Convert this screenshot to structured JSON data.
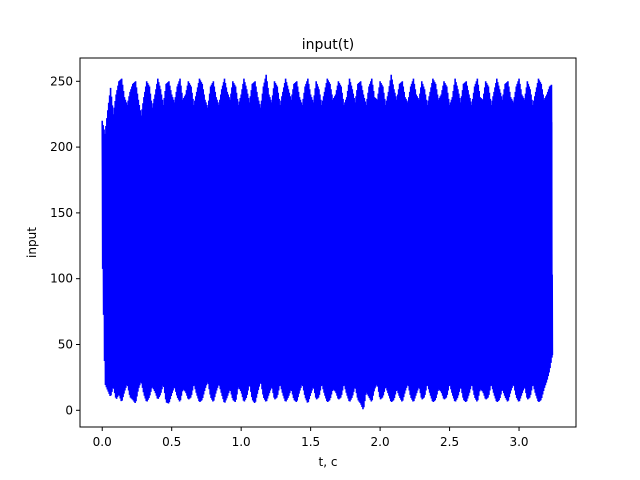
{
  "chart_data": {
    "type": "line",
    "title": "input(t)",
    "xlabel": "t, c",
    "ylabel": "input",
    "xlim": [
      -0.16,
      3.41
    ],
    "ylim": [
      -12.7,
      267.7
    ],
    "xticks": [
      0.0,
      0.5,
      1.0,
      1.5,
      2.0,
      2.5,
      3.0
    ],
    "xtick_labels": [
      "0.0",
      "0.5",
      "1.0",
      "1.5",
      "2.0",
      "2.5",
      "3.0"
    ],
    "yticks": [
      0,
      50,
      100,
      150,
      200,
      250
    ],
    "ytick_labels": [
      "0",
      "50",
      "100",
      "150",
      "200",
      "250"
    ],
    "grid": false,
    "legend": "none",
    "series": [
      {
        "color": "#0000ff",
        "x": [
          0.0,
          0.02,
          0.04,
          0.06,
          0.08,
          0.1,
          0.12,
          0.14,
          0.16,
          0.18,
          0.2,
          0.22,
          0.24,
          0.26,
          0.28,
          0.3,
          0.32,
          0.34,
          0.36,
          0.38,
          0.4,
          0.42,
          0.44,
          0.46,
          0.48,
          0.5,
          0.52,
          0.54,
          0.56,
          0.58,
          0.6,
          0.62,
          0.64,
          0.66,
          0.68,
          0.7,
          0.72,
          0.74,
          0.76,
          0.78,
          0.8,
          0.82,
          0.84,
          0.86,
          0.88,
          0.9,
          0.92,
          0.94,
          0.96,
          0.98,
          1.0,
          1.02,
          1.04,
          1.06,
          1.08,
          1.1,
          1.12,
          1.14,
          1.16,
          1.18,
          1.2,
          1.22,
          1.24,
          1.26,
          1.28,
          1.3,
          1.32,
          1.34,
          1.36,
          1.38,
          1.4,
          1.42,
          1.44,
          1.46,
          1.48,
          1.5,
          1.52,
          1.54,
          1.56,
          1.58,
          1.6,
          1.62,
          1.64,
          1.66,
          1.68,
          1.7,
          1.72,
          1.74,
          1.76,
          1.78,
          1.8,
          1.82,
          1.84,
          1.86,
          1.88,
          1.9,
          1.92,
          1.94,
          1.96,
          1.98,
          2.0,
          2.02,
          2.04,
          2.06,
          2.08,
          2.1,
          2.12,
          2.14,
          2.16,
          2.18,
          2.2,
          2.22,
          2.24,
          2.26,
          2.28,
          2.3,
          2.32,
          2.34,
          2.36,
          2.38,
          2.4,
          2.42,
          2.44,
          2.46,
          2.48,
          2.5,
          2.52,
          2.54,
          2.56,
          2.58,
          2.6,
          2.62,
          2.64,
          2.66,
          2.68,
          2.7,
          2.72,
          2.74,
          2.76,
          2.78,
          2.8,
          2.82,
          2.84,
          2.86,
          2.88,
          2.9,
          2.92,
          2.94,
          2.96,
          2.98,
          3.0,
          3.02,
          3.04,
          3.06,
          3.08,
          3.1,
          3.12,
          3.14,
          3.16,
          3.18,
          3.2,
          3.22,
          3.24
        ],
        "y_max": [
          220,
          210,
          228,
          245,
          225,
          240,
          250,
          252,
          238,
          232,
          242,
          248,
          250,
          236,
          224,
          238,
          250,
          246,
          230,
          240,
          252,
          244,
          232,
          248,
          250,
          240,
          234,
          246,
          252,
          236,
          240,
          250,
          246,
          232,
          242,
          252,
          248,
          236,
          230,
          246,
          250,
          238,
          232,
          244,
          252,
          242,
          236,
          250,
          246,
          232,
          240,
          252,
          244,
          234,
          248,
          250,
          238,
          230,
          246,
          255,
          240,
          234,
          250,
          246,
          232,
          242,
          252,
          244,
          236,
          248,
          250,
          238,
          232,
          246,
          252,
          240,
          234,
          250,
          244,
          232,
          242,
          252,
          248,
          236,
          240,
          250,
          246,
          232,
          238,
          252,
          244,
          234,
          248,
          250,
          240,
          232,
          246,
          252,
          238,
          236,
          250,
          246,
          232,
          242,
          255,
          244,
          236,
          248,
          250,
          238,
          234,
          246,
          252,
          240,
          236,
          250,
          244,
          232,
          242,
          252,
          248,
          236,
          240,
          250,
          246,
          232,
          238,
          252,
          244,
          234,
          248,
          250,
          240,
          232,
          246,
          252,
          238,
          236,
          250,
          246,
          232,
          242,
          252,
          244,
          236,
          248,
          250,
          238,
          234,
          246,
          252,
          240,
          236,
          250,
          244,
          232,
          242,
          252,
          248,
          236,
          240,
          246,
          248
        ],
        "y_min": [
          125,
          20,
          15,
          10,
          18,
          8,
          12,
          6,
          14,
          20,
          10,
          8,
          5,
          16,
          22,
          12,
          6,
          10,
          18,
          14,
          8,
          12,
          20,
          6,
          5,
          12,
          18,
          10,
          6,
          16,
          14,
          8,
          10,
          20,
          12,
          6,
          8,
          16,
          22,
          10,
          6,
          14,
          20,
          12,
          5,
          10,
          16,
          8,
          6,
          18,
          14,
          6,
          10,
          20,
          8,
          5,
          14,
          22,
          10,
          6,
          12,
          18,
          8,
          10,
          20,
          12,
          6,
          10,
          16,
          8,
          6,
          14,
          20,
          10,
          5,
          12,
          18,
          8,
          10,
          20,
          12,
          6,
          8,
          16,
          14,
          8,
          10,
          20,
          12,
          6,
          10,
          18,
          8,
          5,
          0,
          14,
          10,
          6,
          16,
          20,
          8,
          10,
          18,
          12,
          6,
          8,
          16,
          10,
          6,
          14,
          20,
          10,
          6,
          12,
          18,
          8,
          10,
          20,
          12,
          6,
          8,
          16,
          14,
          8,
          10,
          20,
          12,
          6,
          10,
          18,
          8,
          6,
          12,
          20,
          10,
          6,
          16,
          14,
          8,
          10,
          20,
          12,
          6,
          8,
          16,
          10,
          6,
          14,
          20,
          10,
          6,
          12,
          18,
          8,
          10,
          20,
          12,
          6,
          8,
          16,
          22,
          30,
          42
        ]
      }
    ]
  }
}
